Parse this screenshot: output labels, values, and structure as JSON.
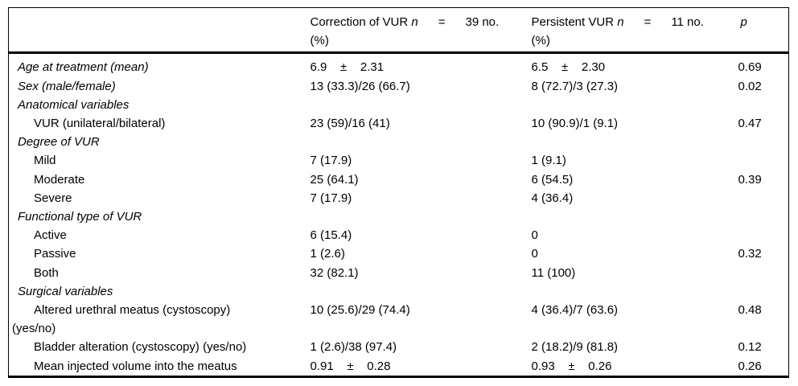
{
  "table": {
    "header": {
      "variable_label": "",
      "correction": {
        "title": "Correction of VUR ",
        "n": "n",
        "rest": "      =      39 no.",
        "unit": "(%)"
      },
      "persistent": {
        "title": "Persistent VUR ",
        "n": "n",
        "rest": "      =      11 no.",
        "unit": "(%)"
      },
      "p": "p"
    },
    "rows": [
      {
        "type": "top",
        "label": "Age at treatment (mean)",
        "correction": "6.9    ±    2.31",
        "persistent": "6.5    ±    2.30",
        "p": "0.69"
      },
      {
        "type": "top",
        "label": "Sex (male/female)",
        "correction": "13 (33.3)/26 (66.7)",
        "persistent": "8 (72.7)/3 (27.3)",
        "p": "0.02"
      },
      {
        "type": "section",
        "label": "Anatomical variables",
        "correction": "",
        "persistent": "",
        "p": ""
      },
      {
        "type": "item",
        "label": "VUR (unilateral/bilateral)",
        "correction": "23 (59)/16 (41)",
        "persistent": "10 (90.9)/1 (9.1)",
        "p": "0.47"
      },
      {
        "type": "section",
        "label": "Degree of VUR",
        "correction": "",
        "persistent": "",
        "p": ""
      },
      {
        "type": "item",
        "label": "Mild",
        "correction": "7 (17.9)",
        "persistent": "1 (9.1)",
        "p": ""
      },
      {
        "type": "item",
        "label": "Moderate",
        "correction": "25 (64.1)",
        "persistent": "6 (54.5)",
        "p": "0.39"
      },
      {
        "type": "item",
        "label": "Severe",
        "correction": "7 (17.9)",
        "persistent": "4 (36.4)",
        "p": ""
      },
      {
        "type": "section",
        "label": "Functional type of VUR",
        "correction": "",
        "persistent": "",
        "p": ""
      },
      {
        "type": "item",
        "label": "Active",
        "correction": "6 (15.4)",
        "persistent": "0",
        "p": ""
      },
      {
        "type": "item",
        "label": "Passive",
        "correction": "1 (2.6)",
        "persistent": "0",
        "p": "0.32"
      },
      {
        "type": "item",
        "label": "Both",
        "correction": "32 (82.1)",
        "persistent": "11 (100)",
        "p": ""
      },
      {
        "type": "section",
        "label": "Surgical variables",
        "correction": "",
        "persistent": "",
        "p": ""
      },
      {
        "type": "itemwrap",
        "label": "Altered urethral meatus (cystoscopy)",
        "label2": "(yes/no)",
        "correction": "10 (25.6)/29 (74.4)",
        "persistent": "4 (36.4)/7 (63.6)",
        "p": "0.48"
      },
      {
        "type": "item",
        "label": "Bladder alteration (cystoscopy) (yes/no)",
        "correction": "1 (2.6)/38 (97.4)",
        "persistent": "2 (18.2)/9 (81.8)",
        "p": "0.12"
      },
      {
        "type": "item",
        "label": "Mean injected volume into the meatus",
        "correction": "0.91    ±    0.28",
        "persistent": "0.93    ±    0.26",
        "p": "0.26"
      }
    ]
  },
  "colors": {
    "text": "#000000",
    "border": "#000000",
    "background": "#ffffff"
  }
}
